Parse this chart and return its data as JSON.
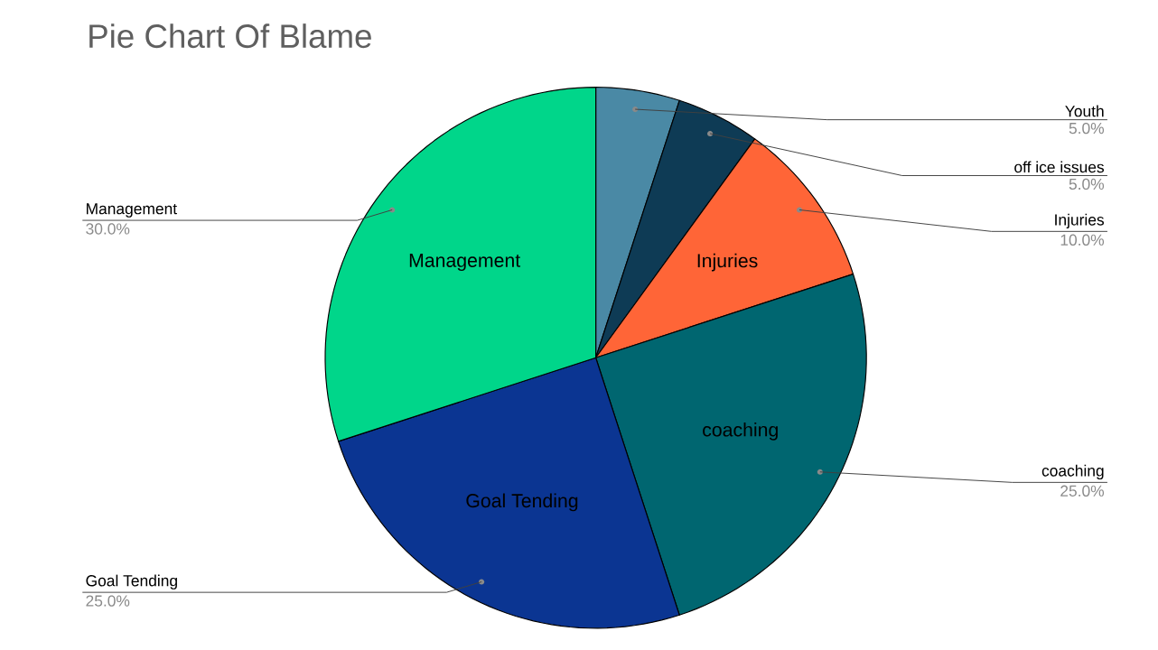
{
  "chart_data": {
    "type": "pie",
    "title": "Pie Chart Of Blame",
    "categories": [
      "Youth",
      "off ice issues",
      "Injuries",
      "coaching",
      "Goal Tending",
      "Management"
    ],
    "values": [
      5,
      5,
      10,
      25,
      25,
      30
    ],
    "colors": [
      "#4a89a5",
      "#0e3b55",
      "#ff6537",
      "#006670",
      "#0b3592",
      "#00d68a"
    ],
    "value_labels": [
      "5.0%",
      "5.0%",
      "10.0%",
      "25.0%",
      "25.0%",
      "30.0%"
    ]
  }
}
